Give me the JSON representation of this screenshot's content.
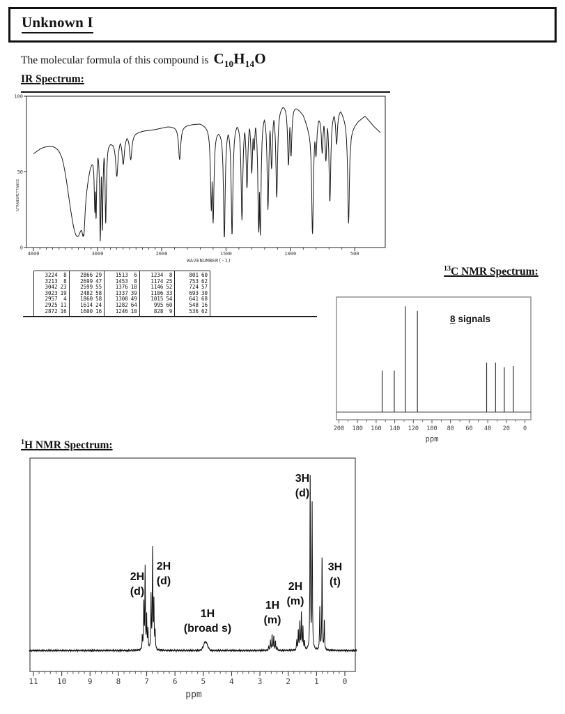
{
  "page": {
    "title": "Unknown I"
  },
  "intro": {
    "text": "The molecular formula of this compound is",
    "formula": {
      "p1": "C",
      "s1": "10",
      "p2": "H",
      "s2": "14",
      "p3": "O"
    }
  },
  "headings": {
    "ir": "IR Spectrum:",
    "c13_sup": "13",
    "c13": "C NMR Spectrum:",
    "h1_sup": "1",
    "h1": "H NMR Spectrum:"
  },
  "chart_data": [
    {
      "id": "ir",
      "type": "line",
      "title": "IR Spectrum",
      "xlabel": "WAVENUMBER(-1)",
      "ylabel": "%TRANSMITTANCE",
      "x_ticks": [
        4000,
        3000,
        2000,
        1500,
        1000,
        500
      ],
      "y_ticks": [
        0,
        50,
        100
      ],
      "ylim": [
        0,
        100
      ],
      "x_scale_note": "split scale: 4000-2000 compressed, below 2000 expanded 2x",
      "peak_table_columns": [
        [
          [
            3224,
            8
          ],
          [
            3213,
            8
          ],
          [
            3042,
            23
          ],
          [
            3023,
            19
          ],
          [
            2957,
            4
          ],
          [
            2925,
            11
          ],
          [
            2872,
            16
          ]
        ],
        [
          [
            2866,
            29
          ],
          [
            2699,
            47
          ],
          [
            2599,
            55
          ],
          [
            2482,
            58
          ],
          [
            1860,
            58
          ],
          [
            1614,
            24
          ],
          [
            1600,
            16
          ]
        ],
        [
          [
            1513,
            6
          ],
          [
            1453,
            8
          ],
          [
            1376,
            18
          ],
          [
            1337,
            39
          ],
          [
            1300,
            49
          ],
          [
            1282,
            64
          ],
          [
            1246,
            10
          ]
        ],
        [
          [
            1234,
            8
          ],
          [
            1174,
            25
          ],
          [
            1146,
            52
          ],
          [
            1106,
            33
          ],
          [
            1015,
            54
          ],
          [
            995,
            60
          ],
          [
            828,
            9
          ]
        ],
        [
          [
            801,
            60
          ],
          [
            753,
            62
          ],
          [
            724,
            57
          ],
          [
            693,
            30
          ],
          [
            641,
            68
          ],
          [
            548,
            16
          ],
          [
            536,
            62
          ]
        ]
      ],
      "broad_band": {
        "center": 3320,
        "min_transmittance": 8,
        "sigma": 165
      },
      "baseline": [
        [
          4000,
          62
        ],
        [
          3900,
          65
        ],
        [
          3820,
          66.5
        ],
        [
          3700,
          67
        ],
        [
          3550,
          66
        ],
        [
          3450,
          62
        ],
        [
          3300,
          60
        ],
        [
          2750,
          70
        ],
        [
          2500,
          75
        ],
        [
          2300,
          77
        ],
        [
          2100,
          78
        ],
        [
          2000,
          79
        ],
        [
          1950,
          80
        ],
        [
          1870,
          80
        ],
        [
          1800,
          81
        ],
        [
          1700,
          82
        ],
        [
          1640,
          80
        ],
        [
          1560,
          77
        ],
        [
          1470,
          80
        ],
        [
          1400,
          83
        ],
        [
          1330,
          85
        ],
        [
          1270,
          87
        ],
        [
          1200,
          89
        ],
        [
          1130,
          91
        ],
        [
          1060,
          94
        ],
        [
          1000,
          95
        ],
        [
          955,
          93
        ],
        [
          900,
          88
        ],
        [
          860,
          80
        ],
        [
          830,
          78
        ],
        [
          790,
          85
        ],
        [
          760,
          88
        ],
        [
          730,
          87
        ],
        [
          700,
          89
        ],
        [
          660,
          90
        ],
        [
          610,
          91
        ],
        [
          575,
          86
        ],
        [
          550,
          82
        ],
        [
          520,
          80
        ],
        [
          470,
          84
        ],
        [
          420,
          87
        ],
        [
          350,
          80
        ],
        [
          300,
          76
        ]
      ]
    },
    {
      "id": "c13",
      "type": "bar",
      "title": "13C NMR Spectrum",
      "xlabel": "ppm",
      "annotation_number": "8",
      "annotation_text": "signals",
      "x_ticks": [
        200,
        180,
        160,
        140,
        120,
        100,
        80,
        60,
        40,
        20,
        0
      ],
      "xlim": [
        200,
        0
      ],
      "peaks": [
        {
          "ppm": 153.5,
          "h": 0.36
        },
        {
          "ppm": 140.5,
          "h": 0.36
        },
        {
          "ppm": 128.6,
          "h": 0.92
        },
        {
          "ppm": 115.6,
          "h": 0.88
        },
        {
          "ppm": 41.2,
          "h": 0.43
        },
        {
          "ppm": 31.6,
          "h": 0.43
        },
        {
          "ppm": 22.2,
          "h": 0.39
        },
        {
          "ppm": 12.5,
          "h": 0.4
        }
      ]
    },
    {
      "id": "h1",
      "type": "line",
      "title": "1H NMR Spectrum",
      "xlabel": "ppm",
      "x_ticks": [
        11,
        10,
        9,
        8,
        7,
        6,
        5,
        4,
        3,
        2,
        1,
        0
      ],
      "xlim": [
        11,
        0
      ],
      "multiplets": [
        {
          "label": "2H",
          "mult": "(d)",
          "ppm": 7.05,
          "lines": [
            [
              7.155,
              0.07
            ],
            [
              7.1,
              0.24
            ],
            [
              7.055,
              0.42
            ],
            [
              7.0,
              0.17
            ],
            [
              6.955,
              0.1
            ]
          ]
        },
        {
          "label": "2H",
          "mult": "(d)",
          "ppm": 6.78,
          "lines": [
            [
              6.845,
              0.28
            ],
            [
              6.79,
              0.52
            ],
            [
              6.745,
              0.24
            ],
            [
              6.7,
              0.09
            ]
          ]
        },
        {
          "label": "1H",
          "mult": "(broad s)",
          "ppm": 4.92,
          "broad": {
            "center": 4.92,
            "h": 0.045,
            "sigma": 0.1
          }
        },
        {
          "label": "1H",
          "mult": "(m)",
          "ppm": 2.54,
          "lines": [
            [
              2.69,
              0.02
            ],
            [
              2.63,
              0.05
            ],
            [
              2.57,
              0.082
            ],
            [
              2.51,
              0.075
            ],
            [
              2.45,
              0.045
            ],
            [
              2.39,
              0.015
            ]
          ]
        },
        {
          "label": "2H",
          "mult": "(m)",
          "ppm": 1.55,
          "lines": [
            [
              1.7,
              0.05
            ],
            [
              1.645,
              0.1
            ],
            [
              1.59,
              0.145
            ],
            [
              1.535,
              0.19
            ],
            [
              1.48,
              0.115
            ],
            [
              1.425,
              0.045
            ]
          ]
        },
        {
          "label": "3H",
          "mult": "(d)",
          "ppm": 1.19,
          "lines": [
            [
              1.225,
              0.9
            ],
            [
              1.155,
              0.76
            ]
          ]
        },
        {
          "label": "3H",
          "mult": "(t)",
          "ppm": 0.8,
          "lines": [
            [
              0.885,
              0.22
            ],
            [
              0.805,
              0.48
            ],
            [
              0.725,
              0.15
            ]
          ]
        }
      ]
    }
  ]
}
